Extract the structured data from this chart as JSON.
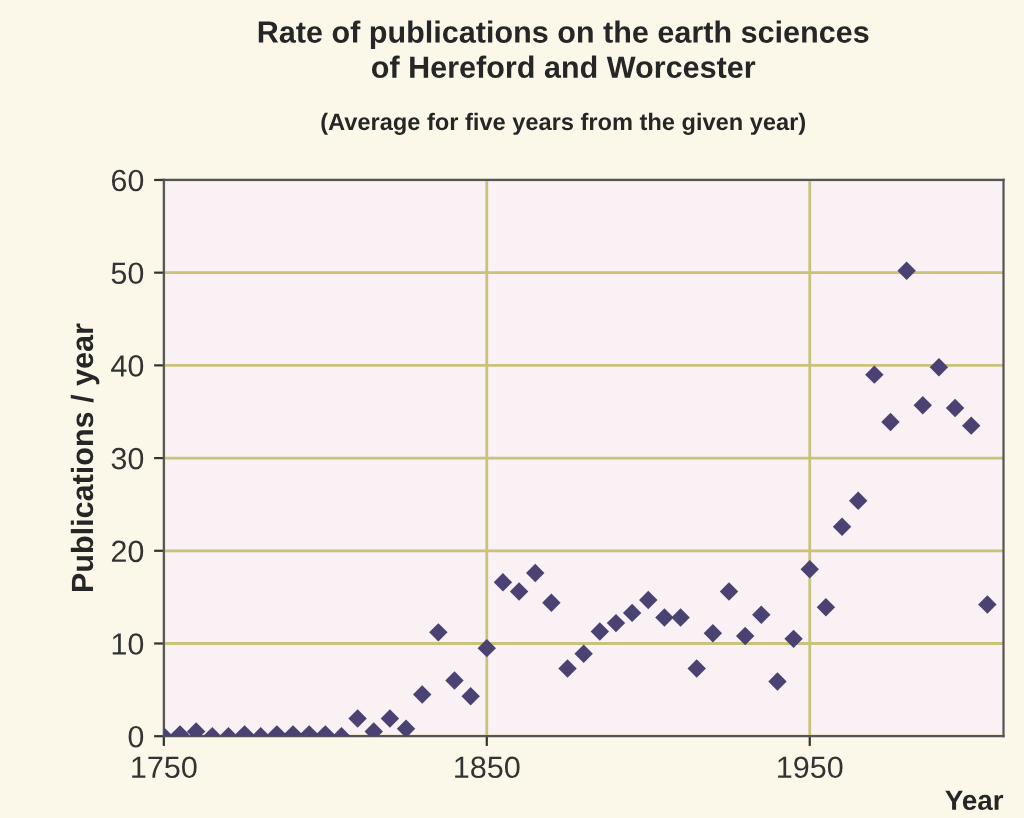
{
  "chart_data": {
    "type": "scatter",
    "title": "Rate of publications on the earth sciences\nof Hereford and Worcester",
    "subtitle": "(Average for five years from the given year)",
    "xlabel": "Year",
    "ylabel": "Publications / year",
    "x": [
      1750,
      1755,
      1760,
      1765,
      1770,
      1775,
      1780,
      1785,
      1790,
      1795,
      1800,
      1805,
      1810,
      1815,
      1820,
      1825,
      1830,
      1835,
      1840,
      1845,
      1850,
      1855,
      1860,
      1865,
      1870,
      1875,
      1880,
      1885,
      1890,
      1895,
      1900,
      1905,
      1910,
      1915,
      1920,
      1925,
      1930,
      1935,
      1940,
      1945,
      1950,
      1955,
      1960,
      1965,
      1970,
      1975,
      1980,
      1985,
      1990,
      1995,
      2000,
      2005
    ],
    "series": [
      {
        "color": "#4a4272",
        "values": [
          0,
          0.2,
          0.5,
          0,
          0,
          0.2,
          0,
          0.2,
          0.2,
          0.2,
          0.2,
          0,
          1.9,
          0.5,
          1.9,
          0.8,
          4.5,
          11.2,
          6,
          4.3,
          9.5,
          16.6,
          15.6,
          17.6,
          14.4,
          7.3,
          8.9,
          11.3,
          12.2,
          13.3,
          14.7,
          12.8,
          12.8,
          7.3,
          11.1,
          15.6,
          10.8,
          13.1,
          5.9,
          10.5,
          18,
          13.9,
          22.6,
          25.4,
          39,
          33.9,
          50.2,
          35.7,
          39.8,
          35.4,
          33.5,
          14.2
        ]
      }
    ],
    "xlim": [
      1750,
      2010
    ],
    "xticks": [
      1750,
      1850,
      1950
    ],
    "ylim": [
      0,
      60
    ],
    "yticks": [
      0,
      10,
      20,
      30,
      40,
      50,
      60
    ],
    "grid": true,
    "marker": "diamond",
    "legend": false
  }
}
